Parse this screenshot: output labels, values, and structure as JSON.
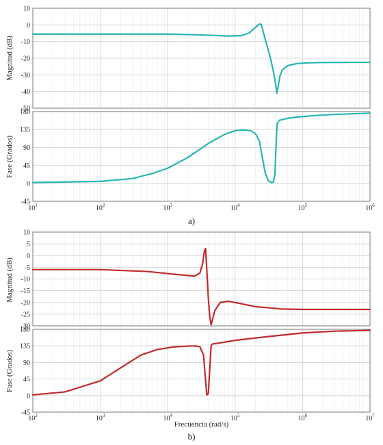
{
  "chart_data": [
    {
      "panel": "a)",
      "type": "line",
      "color": "#26b5b5",
      "x_scale": "log",
      "xlim": [
        10,
        1000000
      ],
      "x_tick_labels": [
        {
          "base": "10",
          "exp": "1"
        },
        {
          "base": "10",
          "exp": "2"
        },
        {
          "base": "10",
          "exp": "3"
        },
        {
          "base": "10",
          "exp": "4"
        },
        {
          "base": "10",
          "exp": "5"
        },
        {
          "base": "10",
          "exp": "6"
        }
      ],
      "xlabel": "",
      "grid": true,
      "magnitude": {
        "ylabel": "Magnitud (dB)",
        "ylim": [
          -50,
          10
        ],
        "yticks": [
          "10",
          "0",
          "-10",
          "-20",
          "-30",
          "-40",
          "-50"
        ],
        "x": [
          10,
          100,
          1000,
          3000,
          8000,
          12000,
          16000,
          20000,
          23000,
          24500,
          26000,
          29000,
          33000,
          37000,
          40000,
          41500,
          43000,
          46000,
          50000,
          60000,
          80000,
          120000,
          200000,
          500000,
          1000000
        ],
        "y": [
          -5.5,
          -5.5,
          -5.5,
          -6.0,
          -6.7,
          -6.5,
          -5.0,
          -1.5,
          0.5,
          0.2,
          -4,
          -11,
          -19,
          -28,
          -36,
          -41,
          -38,
          -31,
          -27,
          -24.5,
          -23.3,
          -22.8,
          -22.6,
          -22.5,
          -22.5
        ]
      },
      "phase": {
        "ylabel": "Fase (Grados)",
        "ylim": [
          -45,
          180
        ],
        "yticks": [
          "180",
          "135",
          "90",
          "45",
          "0",
          "-45"
        ],
        "x": [
          10,
          100,
          300,
          600,
          1000,
          2000,
          4000,
          7000,
          10000,
          13000,
          17000,
          20000,
          23000,
          25000,
          28000,
          31000,
          34000,
          37000,
          39000,
          40500,
          42000,
          45000,
          50000,
          60000,
          80000,
          150000,
          300000,
          1000000
        ],
        "y": [
          2,
          5,
          12,
          25,
          38,
          65,
          100,
          123,
          132,
          134,
          132,
          125,
          105,
          70,
          25,
          7,
          2,
          3,
          25,
          100,
          150,
          158,
          160,
          163,
          166,
          170,
          173,
          176
        ]
      }
    },
    {
      "panel": "b)",
      "type": "line",
      "color": "#c22a2a",
      "x_scale": "log",
      "xlim": [
        100,
        10000000
      ],
      "x_tick_labels": [
        {
          "base": "10",
          "exp": "2"
        },
        {
          "base": "10",
          "exp": "3"
        },
        {
          "base": "10",
          "exp": "4"
        },
        {
          "base": "10",
          "exp": "5"
        },
        {
          "base": "10",
          "exp": "6"
        },
        {
          "base": "10",
          "exp": "7"
        }
      ],
      "xlabel": "Frecuencia (rad/s)",
      "grid": true,
      "magnitude": {
        "ylabel": "Magnitud (dB)",
        "ylim": [
          -30,
          10
        ],
        "yticks": [
          "10",
          "5",
          "0",
          "-5",
          "-10",
          "-15",
          "-20",
          "-25",
          "-30"
        ],
        "x": [
          100,
          1000,
          5000,
          15000,
          25000,
          30000,
          33000,
          35000,
          36500,
          38000,
          40000,
          42000,
          44000,
          46000,
          50000,
          60000,
          80000,
          120000,
          200000,
          500000,
          1000000,
          10000000
        ],
        "y": [
          -6,
          -6,
          -6.8,
          -8.2,
          -8.8,
          -7.5,
          -3.5,
          2,
          3,
          -6,
          -18,
          -26,
          -29.5,
          -27.5,
          -23.5,
          -20,
          -19.5,
          -20.5,
          -21.8,
          -22.8,
          -23,
          -23
        ]
      },
      "phase": {
        "ylabel": "Fase (Grados)",
        "ylim": [
          -45,
          180
        ],
        "yticks": [
          "180",
          "135",
          "90",
          "45",
          "0",
          "-45"
        ],
        "x": [
          100,
          300,
          1000,
          2000,
          4000,
          7000,
          12000,
          18000,
          25000,
          30000,
          34000,
          36500,
          38000,
          40000,
          42000,
          44000,
          46000,
          55000,
          100000,
          300000,
          1000000,
          3000000,
          10000000
        ],
        "y": [
          2,
          10,
          40,
          75,
          110,
          125,
          132,
          134,
          135,
          133,
          110,
          40,
          2,
          5,
          70,
          135,
          140,
          142,
          150,
          160,
          170,
          175,
          177
        ]
      }
    }
  ],
  "captions": [
    "a)",
    "b)"
  ]
}
